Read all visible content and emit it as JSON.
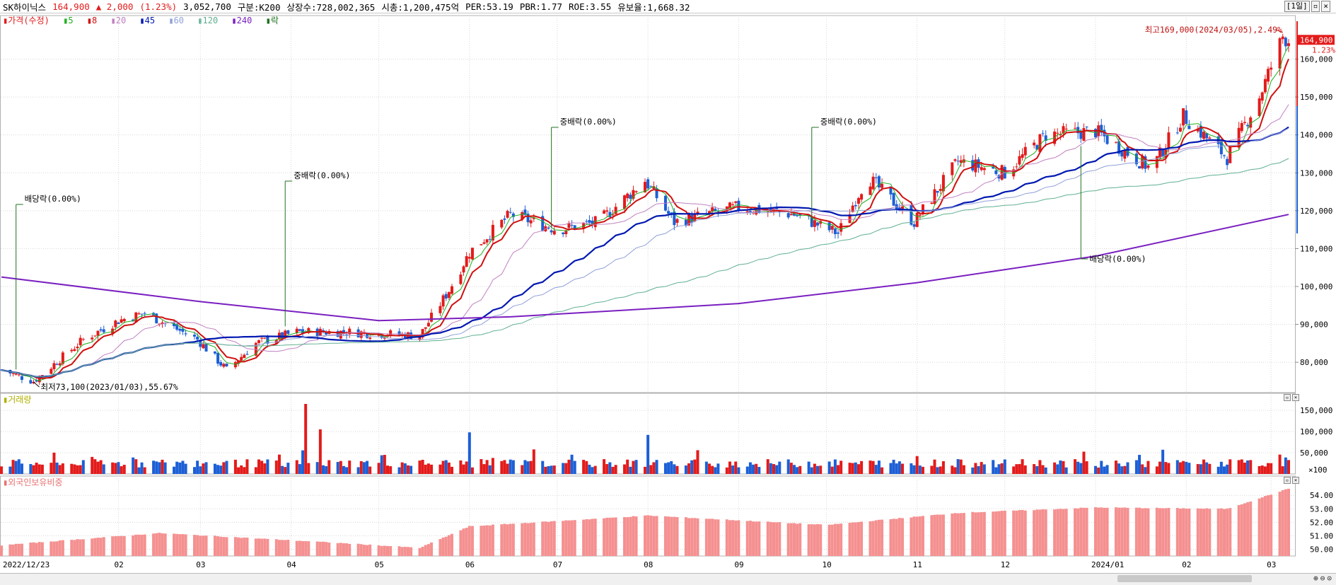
{
  "header": {
    "name": "SK하이닉스",
    "price": "164,900",
    "change": "▲ 2,000",
    "change_pct": "(1.23%)",
    "volume": "3,052,700",
    "segment": "구분:K200",
    "listed": "상장수:728,002,365",
    "mcap": "시총:1,200,475억",
    "per": "PER:53.19",
    "pbr": "PBR:1.77",
    "roe": "ROE:3.55",
    "float": "유보율:1,668.32",
    "period": "[1일]"
  },
  "legend": {
    "price": "가격(수정)",
    "ma5": "5",
    "ma8": "8",
    "ma20": "20",
    "ma45": "45",
    "ma60": "60",
    "ma120": "120",
    "ma240": "240",
    "rak": "락"
  },
  "colors": {
    "up": "#e31b1b",
    "down": "#1c5fd6",
    "ma5": "#20b020",
    "ma8": "#d01010",
    "ma20": "#c080c0",
    "ma45": "#0018b0",
    "ma60": "#90a0d8",
    "ma120": "#60b090",
    "ma240": "#7a1fc0",
    "foreign": "#f59090"
  },
  "panels": {
    "volume_title": "거래량",
    "foreign_title": "외국인보유비중"
  },
  "chart_data": [
    {
      "type": "candlestick",
      "title": "",
      "x_range": [
        "2022-12-23",
        "2024-03-07"
      ],
      "ylim": [
        72000,
        170000
      ],
      "y_ticks": [
        80000,
        90000,
        100000,
        110000,
        120000,
        130000,
        140000,
        150000,
        160000
      ],
      "y_tick_labels": [
        "80,000",
        "90,000",
        "100,000",
        "110,000",
        "120,000",
        "130,000",
        "140,000",
        "150,000",
        "160,000"
      ],
      "x_tick_labels": [
        "2022/12/23",
        "02",
        "03",
        "04",
        "05",
        "06",
        "07",
        "08",
        "09",
        "10",
        "11",
        "12",
        "2024/01",
        "02",
        "03"
      ],
      "approx_close_path": [
        {
          "x": "2022-12-23",
          "close": 78000
        },
        {
          "x": "2023-01-03",
          "close": 75000
        },
        {
          "x": "2023-01-20",
          "close": 86000
        },
        {
          "x": "2023-02-01",
          "close": 91000
        },
        {
          "x": "2023-02-10",
          "close": 93000
        },
        {
          "x": "2023-02-28",
          "close": 86000
        },
        {
          "x": "2023-03-10",
          "close": 78000
        },
        {
          "x": "2023-03-20",
          "close": 85000
        },
        {
          "x": "2023-04-03",
          "close": 88000
        },
        {
          "x": "2023-04-20",
          "close": 88000
        },
        {
          "x": "2023-05-15",
          "close": 87000
        },
        {
          "x": "2023-05-25",
          "close": 99000
        },
        {
          "x": "2023-06-01",
          "close": 109000
        },
        {
          "x": "2023-06-15",
          "close": 119000
        },
        {
          "x": "2023-07-01",
          "close": 115000
        },
        {
          "x": "2023-07-15",
          "close": 117000
        },
        {
          "x": "2023-07-31",
          "close": 128000
        },
        {
          "x": "2023-08-10",
          "close": 117000
        },
        {
          "x": "2023-09-01",
          "close": 121000
        },
        {
          "x": "2023-09-20",
          "close": 119000
        },
        {
          "x": "2023-10-05",
          "close": 114000
        },
        {
          "x": "2023-10-15",
          "close": 129000
        },
        {
          "x": "2023-10-31",
          "close": 117000
        },
        {
          "x": "2023-11-15",
          "close": 133000
        },
        {
          "x": "2023-12-01",
          "close": 130000
        },
        {
          "x": "2023-12-15",
          "close": 140000
        },
        {
          "x": "2024-01-01",
          "close": 141000
        },
        {
          "x": "2024-01-20",
          "close": 131000
        },
        {
          "x": "2024-01-31",
          "close": 145000
        },
        {
          "x": "2024-02-15",
          "close": 134000
        },
        {
          "x": "2024-02-26",
          "close": 150000
        },
        {
          "x": "2024-03-05",
          "close": 166000
        },
        {
          "x": "2024-03-07",
          "close": 164900
        }
      ],
      "annotations": [
        {
          "text": "배당락(0.00%)",
          "x": "2022-12-28"
        },
        {
          "text": "중배락(0.00%)",
          "x": "2023-03-30"
        },
        {
          "text": "중배락(0.00%)",
          "x": "2023-06-29"
        },
        {
          "text": "중배락(0.00%)",
          "x": "2023-09-26"
        },
        {
          "text": "배당락(0.00%)",
          "x": "2023-12-27"
        },
        {
          "text": "최고169,000(2024/03/05),2.49%",
          "x": "2024-03-05",
          "y": 169000
        },
        {
          "text": "최저73,100(2023/01/03),55.67%",
          "x": "2023-01-03",
          "y": 73100
        }
      ],
      "last_price_label": "164,900",
      "last_pct_label": "1.23%"
    },
    {
      "type": "bar",
      "title": "거래량",
      "ylim": [
        0,
        170000
      ],
      "y_ticks": [
        50000,
        100000,
        150000
      ],
      "y_tick_labels": [
        "50,000",
        "100,000",
        "150,000"
      ],
      "unit_label": "×100",
      "approx_peaks": [
        {
          "x": "2023-04-06",
          "value": 165000
        },
        {
          "x": "2023-04-11",
          "value": 105000
        },
        {
          "x": "2023-06-01",
          "value": 98000
        },
        {
          "x": "2023-08-01",
          "value": 92000
        }
      ]
    },
    {
      "type": "bar",
      "title": "외국인보유비중",
      "ylim": [
        49.5,
        54.8
      ],
      "y_ticks": [
        50.0,
        51.0,
        52.0,
        53.0,
        54.0
      ],
      "y_tick_labels": [
        "50.00",
        "51.00",
        "52.00",
        "53.00",
        "54.00"
      ],
      "approx_path": [
        {
          "x": "2022-12-23",
          "value": 50.3
        },
        {
          "x": "2023-02-15",
          "value": 51.2
        },
        {
          "x": "2023-04-15",
          "value": 50.5
        },
        {
          "x": "2023-05-15",
          "value": 50.1
        },
        {
          "x": "2023-06-01",
          "value": 51.7
        },
        {
          "x": "2023-08-01",
          "value": 52.5
        },
        {
          "x": "2023-10-01",
          "value": 51.8
        },
        {
          "x": "2023-11-15",
          "value": 52.7
        },
        {
          "x": "2024-01-01",
          "value": 53.1
        },
        {
          "x": "2024-02-15",
          "value": 53.0
        },
        {
          "x": "2024-03-07",
          "value": 54.5
        }
      ]
    }
  ]
}
